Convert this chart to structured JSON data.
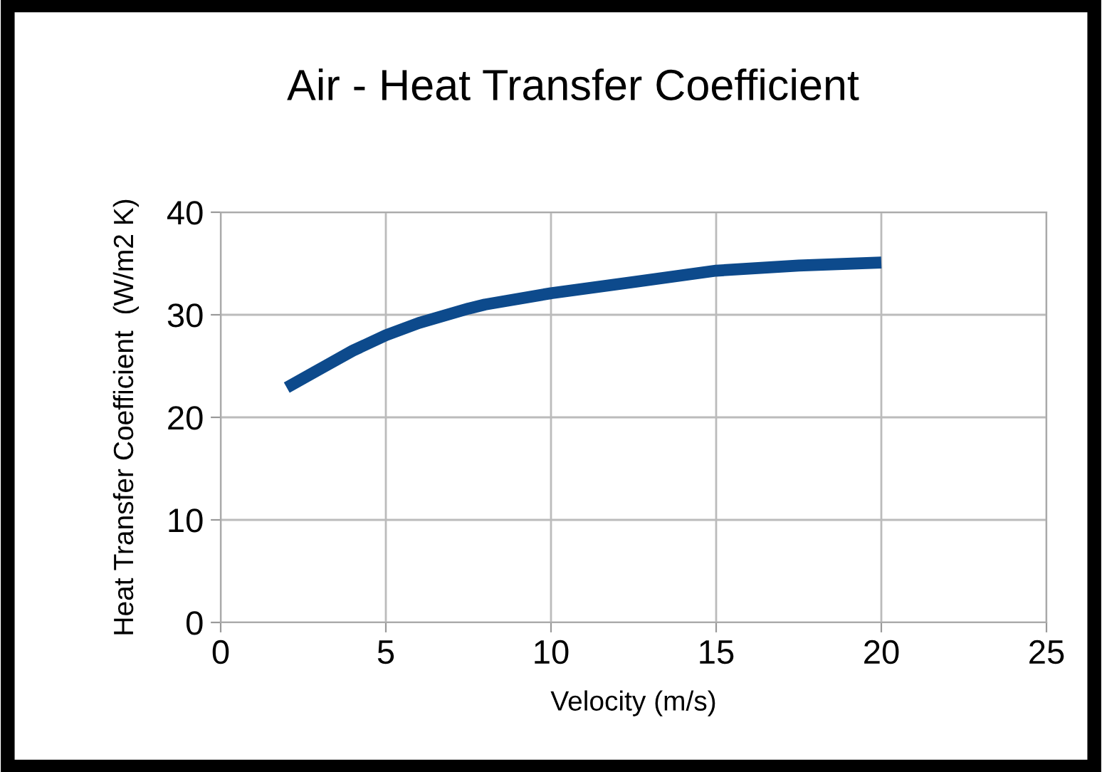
{
  "chart_data": {
    "type": "line",
    "title": "Air - Heat Transfer Coefficient",
    "xlabel": "Velocity (m/s)",
    "ylabel": "Heat Transfer Coefficient  (W/m2 K)",
    "series": [
      {
        "color": "#0d4a8c",
        "x": [
          2,
          3,
          4,
          5,
          6,
          7.5,
          8,
          10,
          12.5,
          15,
          17.5,
          20
        ],
        "values": [
          22.9,
          24.7,
          26.5,
          28.0,
          29.2,
          30.6,
          31.0,
          32.1,
          33.2,
          34.3,
          34.8,
          35.1
        ]
      }
    ],
    "xlim": [
      0,
      25
    ],
    "xticks": [
      0,
      5,
      10,
      15,
      20,
      25
    ],
    "ylim": [
      0,
      40
    ],
    "yticks": [
      0,
      10,
      20,
      30,
      40
    ],
    "grid": true,
    "legend": false,
    "marker": "none",
    "line_style": "solid"
  }
}
